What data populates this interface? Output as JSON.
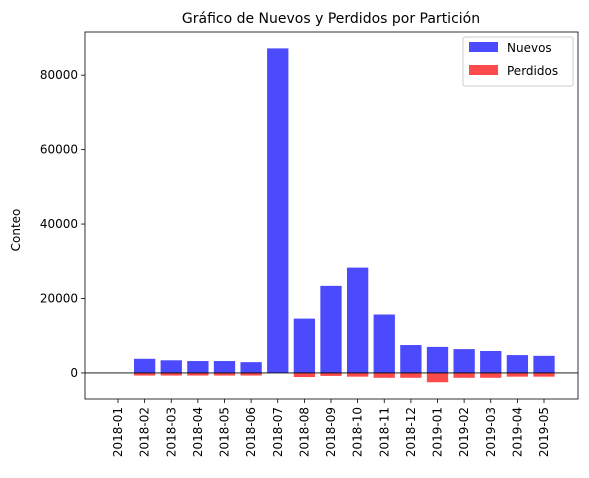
{
  "chart_data": {
    "type": "bar",
    "title": "Gráfico de Nuevos y Perdidos por Partición",
    "xlabel": "",
    "ylabel": "Conteo",
    "categories": [
      "2018-01",
      "2018-02",
      "2018-03",
      "2018-04",
      "2018-05",
      "2018-06",
      "2018-07",
      "2018-08",
      "2018-09",
      "2018-10",
      "2018-11",
      "2018-12",
      "2019-01",
      "2019-02",
      "2019-03",
      "2019-04",
      "2019-05"
    ],
    "series": [
      {
        "name": "Nuevos",
        "color": "#4b4bfd",
        "values": [
          0,
          3800,
          3400,
          3200,
          3200,
          2900,
          87200,
          14600,
          23400,
          28300,
          15700,
          7500,
          7000,
          6400,
          5900,
          4800,
          4600
        ]
      },
      {
        "name": "Perdidos",
        "color": "#fd4b4b",
        "values": [
          0,
          -700,
          -700,
          -700,
          -700,
          -700,
          0,
          -1100,
          -800,
          -1000,
          -1300,
          -1300,
          -2500,
          -1300,
          -1300,
          -1000,
          -1000
        ]
      }
    ],
    "ylim": [
      -7000,
      91600
    ],
    "yticks": [
      0,
      20000,
      40000,
      60000,
      80000
    ],
    "ytick_labels": [
      "0",
      "20000",
      "40000",
      "60000",
      "80000"
    ],
    "zero_line": true,
    "grid": false,
    "legend": "top-right"
  }
}
